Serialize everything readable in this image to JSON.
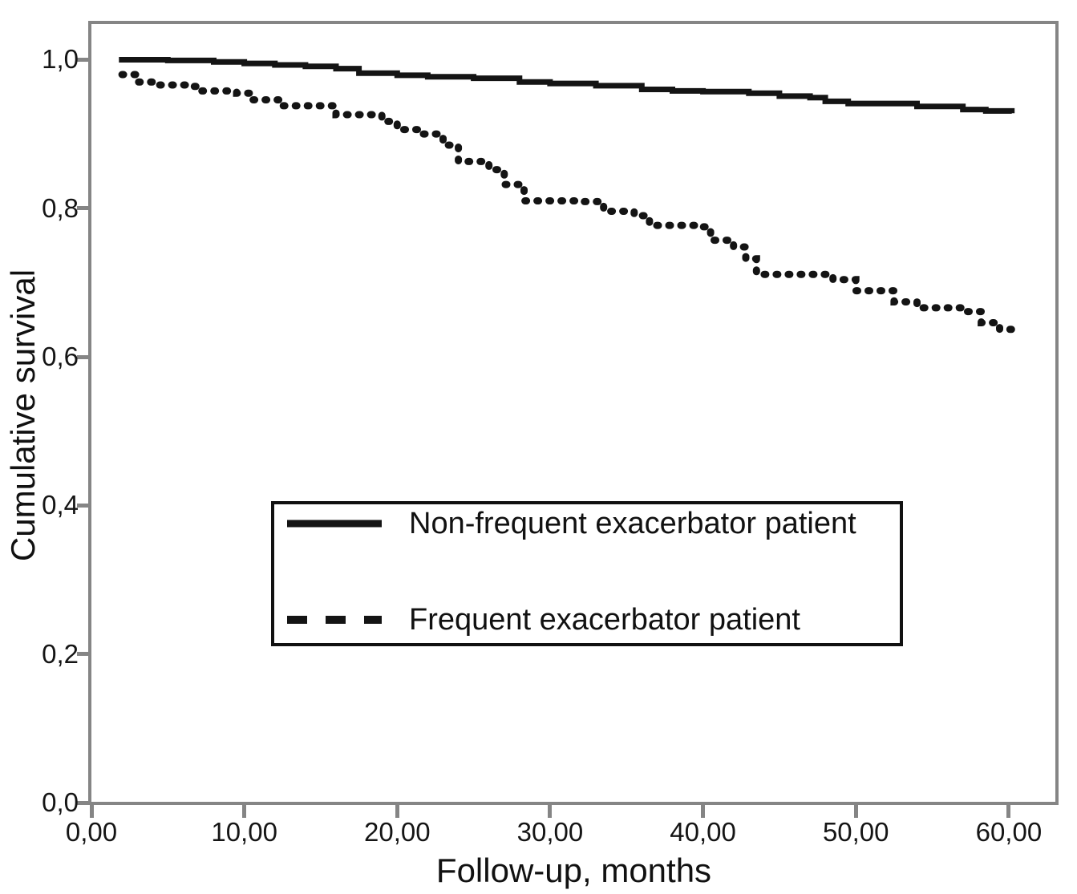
{
  "figure": {
    "background_color": "#ffffff",
    "frame_color": "#858585",
    "curve_color": "#141414",
    "legend_border_color": "#111111"
  },
  "chart_data": {
    "type": "line",
    "subtype": "kaplan-meier-step-survival",
    "title": "",
    "xlabel": "Follow-up, months",
    "ylabel": "Cumulative survival",
    "xlim": [
      0,
      63.1
    ],
    "ylim": [
      0,
      1.048
    ],
    "grid": false,
    "legend_position": "inside-bottom-center-box",
    "x_ticks": [
      {
        "value": 0,
        "label": "0,00"
      },
      {
        "value": 10,
        "label": "10,00"
      },
      {
        "value": 20,
        "label": "20,00"
      },
      {
        "value": 30,
        "label": "30,00"
      },
      {
        "value": 40,
        "label": "40,00"
      },
      {
        "value": 50,
        "label": "50,00"
      },
      {
        "value": 60,
        "label": "60,00"
      }
    ],
    "y_ticks": [
      {
        "value": 1.0,
        "label": "1,0"
      },
      {
        "value": 0.8,
        "label": "0,8"
      },
      {
        "value": 0.6,
        "label": "0,6"
      },
      {
        "value": 0.4,
        "label": "0,4"
      },
      {
        "value": 0.2,
        "label": "0,2"
      },
      {
        "value": 0.0,
        "label": "0,0"
      }
    ],
    "series": [
      {
        "name": "Non-frequent exacerbator patient",
        "style": "solid",
        "color": "#141414",
        "points": [
          [
            1.8,
            1.0
          ],
          [
            5.0,
            0.999
          ],
          [
            8.0,
            0.997
          ],
          [
            10.0,
            0.995
          ],
          [
            12.0,
            0.993
          ],
          [
            14.0,
            0.991
          ],
          [
            16.0,
            0.988
          ],
          [
            17.5,
            0.982
          ],
          [
            20.0,
            0.979
          ],
          [
            22.0,
            0.977
          ],
          [
            25.0,
            0.975
          ],
          [
            28.0,
            0.97
          ],
          [
            30.0,
            0.968
          ],
          [
            33.0,
            0.965
          ],
          [
            36.0,
            0.96
          ],
          [
            38.0,
            0.958
          ],
          [
            40.0,
            0.957
          ],
          [
            43.0,
            0.955
          ],
          [
            45.0,
            0.951
          ],
          [
            47.0,
            0.949
          ],
          [
            48.0,
            0.944
          ],
          [
            49.5,
            0.941
          ],
          [
            54.0,
            0.937
          ],
          [
            57.0,
            0.933
          ],
          [
            58.5,
            0.931
          ],
          [
            60.2,
            0.928
          ]
        ]
      },
      {
        "name": "Frequent exacerbator patient",
        "style": "dotted",
        "color": "#141414",
        "points": [
          [
            2.0,
            0.98
          ],
          [
            3.0,
            0.97
          ],
          [
            4.0,
            0.966
          ],
          [
            6.5,
            0.964
          ],
          [
            7.0,
            0.958
          ],
          [
            9.5,
            0.955
          ],
          [
            10.5,
            0.946
          ],
          [
            12.5,
            0.938
          ],
          [
            16.0,
            0.926
          ],
          [
            19.0,
            0.917
          ],
          [
            20.0,
            0.906
          ],
          [
            21.5,
            0.9
          ],
          [
            23.0,
            0.885
          ],
          [
            24.0,
            0.863
          ],
          [
            26.0,
            0.852
          ],
          [
            27.0,
            0.832
          ],
          [
            28.3,
            0.81
          ],
          [
            31.7,
            0.809
          ],
          [
            33.5,
            0.796
          ],
          [
            35.5,
            0.79
          ],
          [
            36.5,
            0.777
          ],
          [
            39.5,
            0.775
          ],
          [
            40.5,
            0.757
          ],
          [
            42.0,
            0.748
          ],
          [
            42.8,
            0.732
          ],
          [
            43.5,
            0.711
          ],
          [
            48.5,
            0.704
          ],
          [
            50.0,
            0.689
          ],
          [
            52.5,
            0.674
          ],
          [
            54.0,
            0.666
          ],
          [
            57.0,
            0.661
          ],
          [
            58.2,
            0.646
          ],
          [
            59.4,
            0.637
          ],
          [
            60.2,
            0.625
          ]
        ]
      }
    ]
  }
}
